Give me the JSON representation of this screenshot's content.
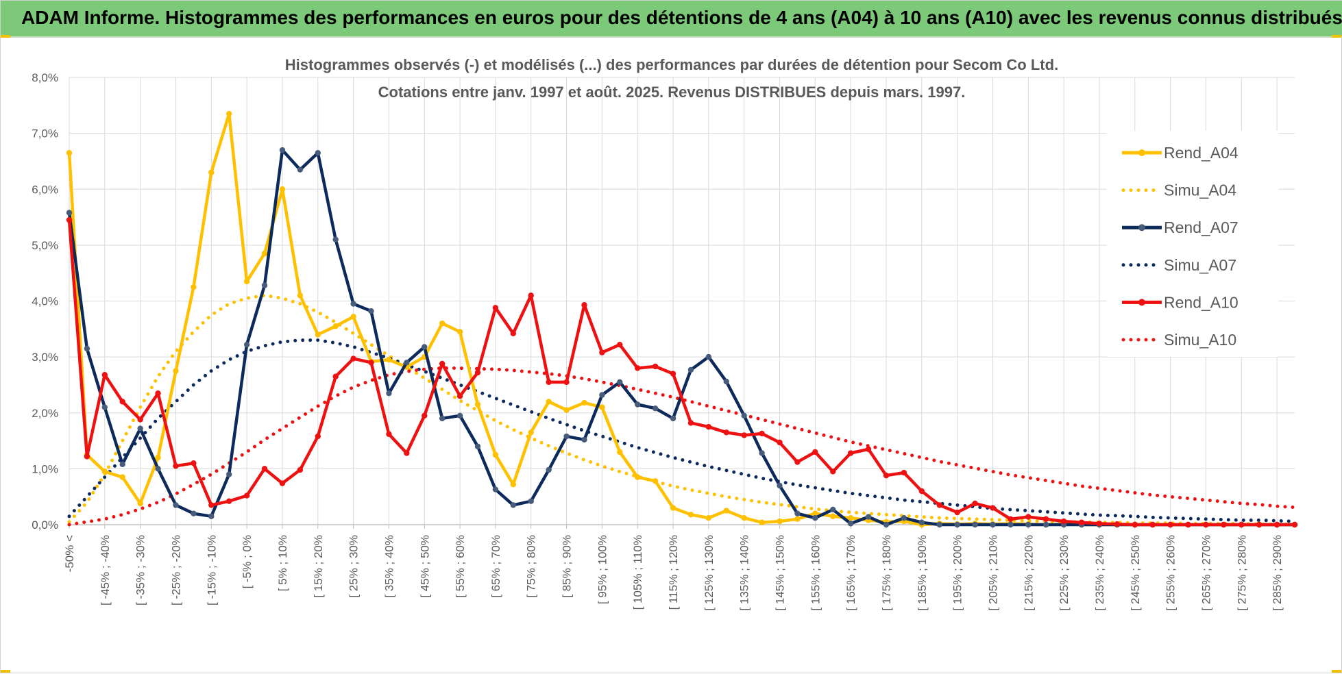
{
  "banner": {
    "title": "ADAM Informe. Histogrammes des performances en euros pour des détentions de 4 ans (A04) à 10 ans (A10) avec les revenus connus distribués"
  },
  "colors": {
    "banner": "#7dc97a",
    "A04": "#FFC000",
    "A07": "#0D2A5C",
    "A10": "#EE1111",
    "grid": "#d9d9d9"
  },
  "chart_data": {
    "type": "line",
    "title": "Histogrammes observés (-) et modélisés (...) des performances par durées de détention pour Secom Co Ltd.",
    "subtitle": "Cotations entre janv. 1997 et août. 2025. Revenus DISTRIBUES depuis mars. 1997.",
    "ylim": [
      0,
      8
    ],
    "ytick_labels": [
      "0,0%",
      "1,0%",
      "2,0%",
      "3,0%",
      "4,0%",
      "5,0%",
      "6,0%",
      "7,0%",
      "8,0%"
    ],
    "grid": true,
    "legend_position": "right",
    "x_tick_labels": [
      "-50% <",
      "[ -45% ; -40%",
      "[ -35% ; -30%",
      "[ -25% ; -20%",
      "[ -15% ; -10%",
      "[ -5% ; 0%",
      "[ 5% ; 10%",
      "[ 15% ; 20%",
      "[ 25% ; 30%",
      "[ 35% ; 40%",
      "[ 45% ; 50%",
      "[ 55% ; 60%",
      "[ 65% ; 70%",
      "[ 75% ; 80%",
      "[ 85% ; 90%",
      "[ 95% ; 100%",
      "[ 105% ; 110%",
      "[ 115% ; 120%",
      "[ 125% ; 130%",
      "[ 135% ; 140%",
      "[ 145% ; 150%",
      "[ 155% ; 160%",
      "[ 165% ; 170%",
      "[ 175% ; 180%",
      "[ 185% ; 190%",
      "[ 195% ; 200%",
      "[ 205% ; 210%",
      "[ 215% ; 220%",
      "[ 225% ; 230%",
      "[ 235% ; 240%",
      "[ 245% ; 250%",
      "[ 255% ; 260%",
      "[ 265% ; 270%",
      "[ 275% ; 280%",
      "[ 285% ; 290%"
    ],
    "series": [
      {
        "name": "Rend_A04",
        "style": "solid",
        "color": "#FFC000",
        "values": [
          6.65,
          1.25,
          0.95,
          0.85,
          0.38,
          1.2,
          2.75,
          4.25,
          6.3,
          7.35,
          4.35,
          4.85,
          6.0,
          4.1,
          3.4,
          3.55,
          3.72,
          2.92,
          2.95,
          2.82,
          3.0,
          3.6,
          3.45,
          2.15,
          1.25,
          0.72,
          1.65,
          2.2,
          2.05,
          2.18,
          2.1,
          1.3,
          0.85,
          0.78,
          0.3,
          0.18,
          0.12,
          0.25,
          0.12,
          0.04,
          0.06,
          0.1,
          0.2,
          0.15,
          0.12,
          0.08,
          0.05,
          0.06,
          0.0,
          0.02,
          0.01,
          0.02,
          0.01,
          0.02,
          0.01,
          0.0,
          0.01,
          0.0,
          0.0,
          0.0,
          0.0,
          0.0,
          0.0,
          0.0,
          0.0,
          0.0,
          0.0,
          0.0,
          0.0,
          0.0
        ]
      },
      {
        "name": "Simu_A04",
        "style": "dotted",
        "color": "#FFC000",
        "values": [
          0.05,
          0.4,
          0.9,
          1.5,
          2.1,
          2.65,
          3.1,
          3.45,
          3.75,
          3.95,
          4.05,
          4.1,
          4.05,
          3.95,
          3.8,
          3.62,
          3.42,
          3.22,
          3.02,
          2.82,
          2.62,
          2.42,
          2.22,
          2.04,
          1.86,
          1.7,
          1.55,
          1.41,
          1.28,
          1.16,
          1.05,
          0.95,
          0.86,
          0.77,
          0.69,
          0.62,
          0.56,
          0.5,
          0.45,
          0.4,
          0.36,
          0.32,
          0.28,
          0.25,
          0.22,
          0.2,
          0.18,
          0.16,
          0.14,
          0.12,
          0.11,
          0.1,
          0.09,
          0.08,
          0.07,
          0.06,
          0.05,
          0.05,
          0.04,
          0.04,
          0.03,
          0.03,
          0.03,
          0.02,
          0.02,
          0.02,
          0.02,
          0.01,
          0.01,
          0.01
        ]
      },
      {
        "name": "Rend_A07",
        "style": "solid",
        "color": "#0D2A5C",
        "values": [
          5.58,
          3.15,
          2.1,
          1.08,
          1.72,
          1.0,
          0.35,
          0.2,
          0.15,
          0.9,
          3.22,
          4.28,
          6.7,
          6.35,
          6.65,
          5.1,
          3.95,
          3.82,
          2.35,
          2.9,
          3.18,
          1.9,
          1.95,
          1.4,
          0.63,
          0.35,
          0.42,
          0.98,
          1.58,
          1.52,
          2.32,
          2.55,
          2.15,
          2.08,
          1.9,
          2.77,
          3.0,
          2.56,
          1.95,
          1.28,
          0.7,
          0.2,
          0.12,
          0.27,
          0.02,
          0.14,
          0.0,
          0.12,
          0.04,
          0.0,
          0.0,
          0.0,
          0.0,
          0.0,
          0.0,
          0.0,
          0.0,
          0.0,
          0.0,
          0.0,
          0.0,
          0.0,
          0.0,
          0.0,
          0.0,
          0.0,
          0.0,
          0.0,
          0.0,
          0.0
        ]
      },
      {
        "name": "Simu_A07",
        "style": "dotted",
        "color": "#0D2A5C",
        "values": [
          0.15,
          0.5,
          0.85,
          1.2,
          1.55,
          1.9,
          2.2,
          2.5,
          2.75,
          2.95,
          3.1,
          3.2,
          3.27,
          3.3,
          3.3,
          3.25,
          3.18,
          3.08,
          2.98,
          2.86,
          2.74,
          2.62,
          2.5,
          2.38,
          2.26,
          2.14,
          2.02,
          1.9,
          1.79,
          1.68,
          1.58,
          1.48,
          1.38,
          1.29,
          1.2,
          1.12,
          1.04,
          0.97,
          0.9,
          0.83,
          0.77,
          0.71,
          0.66,
          0.61,
          0.56,
          0.52,
          0.48,
          0.44,
          0.41,
          0.38,
          0.35,
          0.32,
          0.29,
          0.27,
          0.25,
          0.23,
          0.21,
          0.19,
          0.17,
          0.16,
          0.15,
          0.13,
          0.12,
          0.11,
          0.1,
          0.09,
          0.08,
          0.08,
          0.07,
          0.06
        ]
      },
      {
        "name": "Rend_A10",
        "style": "solid",
        "color": "#EE1111",
        "values": [
          5.45,
          1.22,
          2.68,
          2.2,
          1.88,
          2.35,
          1.05,
          1.1,
          0.35,
          0.42,
          0.52,
          1.0,
          0.74,
          0.98,
          1.58,
          2.65,
          2.97,
          2.9,
          1.62,
          1.28,
          1.95,
          2.88,
          2.3,
          2.72,
          3.88,
          3.42,
          4.1,
          2.55,
          2.55,
          3.93,
          3.08,
          3.22,
          2.8,
          2.83,
          2.7,
          1.82,
          1.75,
          1.65,
          1.6,
          1.63,
          1.47,
          1.12,
          1.3,
          0.95,
          1.28,
          1.35,
          0.88,
          0.93,
          0.6,
          0.35,
          0.22,
          0.38,
          0.3,
          0.1,
          0.14,
          0.1,
          0.06,
          0.04,
          0.02,
          0.01,
          0.0,
          0.0,
          0.0,
          0.0,
          0.0,
          0.0,
          0.0,
          0.0,
          0.0,
          0.0
        ]
      },
      {
        "name": "Simu_A10",
        "style": "dotted",
        "color": "#EE1111",
        "values": [
          0.0,
          0.05,
          0.1,
          0.18,
          0.28,
          0.4,
          0.55,
          0.72,
          0.9,
          1.1,
          1.3,
          1.52,
          1.72,
          1.92,
          2.12,
          2.3,
          2.46,
          2.58,
          2.68,
          2.74,
          2.78,
          2.8,
          2.8,
          2.79,
          2.78,
          2.76,
          2.73,
          2.7,
          2.66,
          2.61,
          2.55,
          2.49,
          2.42,
          2.35,
          2.28,
          2.2,
          2.12,
          2.04,
          1.96,
          1.88,
          1.8,
          1.72,
          1.64,
          1.56,
          1.48,
          1.41,
          1.34,
          1.27,
          1.2,
          1.13,
          1.07,
          1.01,
          0.95,
          0.89,
          0.84,
          0.79,
          0.74,
          0.69,
          0.65,
          0.61,
          0.57,
          0.53,
          0.5,
          0.47,
          0.44,
          0.41,
          0.38,
          0.36,
          0.33,
          0.31
        ]
      }
    ]
  }
}
